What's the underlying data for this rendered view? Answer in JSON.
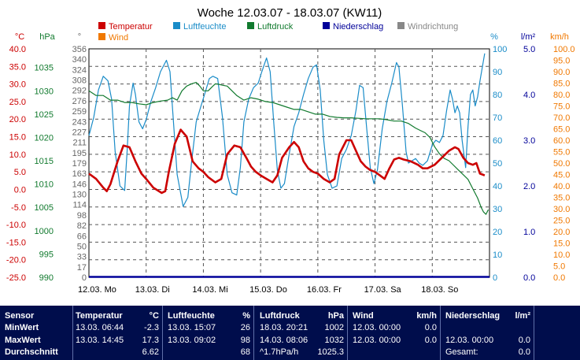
{
  "chart_data": {
    "type": "line",
    "title": "Woche 12.03.07 - 18.03.07 (KW11)",
    "legend": [
      {
        "name": "Temperatur",
        "color": "#cc0000"
      },
      {
        "name": "Luftfeuchte",
        "color": "#1a8cc8"
      },
      {
        "name": "Luftdruck",
        "color": "#117a2e"
      },
      {
        "name": "Niederschlag",
        "color": "#000099"
      },
      {
        "name": "Windrichtung",
        "color": "#888888"
      },
      {
        "name": "Wind",
        "color": "#f07800"
      }
    ],
    "axes": {
      "temp": {
        "unit": "°C",
        "min": -25,
        "max": 40,
        "step": 5,
        "color": "#cc0000",
        "ticks": [
          "40.0",
          "35.0",
          "30.0",
          "25.0",
          "20.0",
          "15.0",
          "10.0",
          "5.0",
          "0.0",
          "-5.0",
          "-10.0",
          "-15.0",
          "-20.0",
          "-25.0"
        ]
      },
      "pressure": {
        "unit": "hPa",
        "min": 990,
        "max": 1039,
        "color": "#117a2e",
        "ticks": [
          "1035",
          "1030",
          "1025",
          "1020",
          "1015",
          "1010",
          "1005",
          "1000",
          "995",
          "990"
        ]
      },
      "direction": {
        "unit": "°",
        "min": 0,
        "max": 356,
        "color": "#666666",
        "ticks": [
          "356",
          "340",
          "324",
          "308",
          "292",
          "276",
          "259",
          "243",
          "227",
          "211",
          "195",
          "179",
          "163",
          "146",
          "130",
          "114",
          "98",
          "82",
          "66",
          "50",
          "33",
          "17",
          "0"
        ]
      },
      "humidity": {
        "unit": "%",
        "min": 0,
        "max": 100,
        "color": "#1a8cc8",
        "ticks": [
          "100",
          "90",
          "80",
          "70",
          "60",
          "50",
          "40",
          "30",
          "20",
          "10",
          "0"
        ]
      },
      "rain": {
        "unit": "l/m²",
        "min": 0,
        "max": 5,
        "color": "#000099",
        "ticks": [
          "5.0",
          "4.0",
          "3.0",
          "2.0",
          "1.0",
          "0.0"
        ]
      },
      "wind": {
        "unit": "km/h",
        "min": 0,
        "max": 100,
        "color": "#f07800",
        "ticks": [
          "100.0",
          "95.0",
          "90.0",
          "85.0",
          "80.0",
          "75.0",
          "70.0",
          "65.0",
          "60.0",
          "55.0",
          "50.0",
          "45.0",
          "40.0",
          "35.0",
          "30.0",
          "25.0",
          "20.0",
          "15.0",
          "10.0",
          "5.0",
          "0.0"
        ]
      }
    },
    "x_labels": [
      "12.03.  Mo",
      "13.03.  Di",
      "14.03.  Mi",
      "15.03.  Do",
      "16.03.  Fr",
      "17.03.  Sa",
      "18.03.  So"
    ],
    "x_range_hours": [
      0,
      168
    ],
    "series": [
      {
        "name": "Temperatur",
        "axis": "temp",
        "color": "#cc0000",
        "points": [
          [
            0,
            4.5
          ],
          [
            3,
            3
          ],
          [
            6,
            0.5
          ],
          [
            7.5,
            -0.5
          ],
          [
            9,
            1.5
          ],
          [
            12,
            8
          ],
          [
            14.5,
            12.5
          ],
          [
            17,
            12
          ],
          [
            19.5,
            8
          ],
          [
            22,
            4.5
          ],
          [
            24,
            3
          ],
          [
            27,
            0.5
          ],
          [
            30.5,
            -1
          ],
          [
            32,
            -0.5
          ],
          [
            33.5,
            5
          ],
          [
            36,
            13
          ],
          [
            38.5,
            17
          ],
          [
            41,
            15
          ],
          [
            43.5,
            8
          ],
          [
            46,
            6
          ],
          [
            48,
            5
          ],
          [
            50,
            3.5
          ],
          [
            53,
            2
          ],
          [
            55.5,
            3
          ],
          [
            58,
            10
          ],
          [
            61,
            12.5
          ],
          [
            63.5,
            12
          ],
          [
            66,
            9
          ],
          [
            68,
            6.5
          ],
          [
            70,
            5
          ],
          [
            72,
            4
          ],
          [
            74.5,
            3
          ],
          [
            77,
            2
          ],
          [
            79,
            4
          ],
          [
            81,
            9
          ],
          [
            84,
            12
          ],
          [
            86,
            13.5
          ],
          [
            88,
            12
          ],
          [
            90,
            8
          ],
          [
            92,
            6
          ],
          [
            94,
            5
          ],
          [
            96,
            4.5
          ],
          [
            98.5,
            3
          ],
          [
            101,
            2
          ],
          [
            103,
            3
          ],
          [
            105,
            10
          ],
          [
            108,
            14
          ],
          [
            110,
            14
          ],
          [
            112,
            11
          ],
          [
            114,
            8
          ],
          [
            116,
            6.5
          ],
          [
            118,
            5.5
          ],
          [
            120,
            5
          ],
          [
            122,
            4
          ],
          [
            124,
            3
          ],
          [
            126,
            6
          ],
          [
            128,
            8.5
          ],
          [
            130,
            9
          ],
          [
            132,
            8.5
          ],
          [
            135,
            8
          ],
          [
            138,
            7
          ],
          [
            140,
            6
          ],
          [
            142,
            6
          ],
          [
            145,
            7
          ],
          [
            148,
            9
          ],
          [
            151,
            11
          ],
          [
            153.5,
            12
          ],
          [
            155,
            11.5
          ],
          [
            157,
            9
          ],
          [
            159,
            7.5
          ],
          [
            161,
            7
          ],
          [
            162.5,
            7.5
          ],
          [
            164,
            4.5
          ],
          [
            166,
            4
          ]
        ]
      },
      {
        "name": "Luftfeuchte",
        "axis": "humidity",
        "color": "#1a8cc8",
        "points": [
          [
            0,
            62
          ],
          [
            2,
            70
          ],
          [
            4,
            82
          ],
          [
            6,
            88
          ],
          [
            8,
            86
          ],
          [
            9.5,
            78
          ],
          [
            11,
            55
          ],
          [
            13,
            40
          ],
          [
            15,
            38
          ],
          [
            16,
            55
          ],
          [
            17,
            75
          ],
          [
            18.5,
            85
          ],
          [
            19.5,
            80
          ],
          [
            21,
            68
          ],
          [
            22.5,
            65
          ],
          [
            24,
            69
          ],
          [
            26,
            77
          ],
          [
            28,
            83
          ],
          [
            30,
            90
          ],
          [
            32.5,
            95
          ],
          [
            34,
            90
          ],
          [
            35,
            75
          ],
          [
            37,
            45
          ],
          [
            39.5,
            31
          ],
          [
            41.5,
            35
          ],
          [
            43,
            50
          ],
          [
            45,
            68
          ],
          [
            47,
            75
          ],
          [
            48.5,
            80
          ],
          [
            50.5,
            87
          ],
          [
            52,
            88
          ],
          [
            54,
            87
          ],
          [
            56,
            70
          ],
          [
            58,
            45
          ],
          [
            60,
            37
          ],
          [
            62,
            36
          ],
          [
            63.5,
            48
          ],
          [
            65,
            68
          ],
          [
            67,
            78
          ],
          [
            69,
            83
          ],
          [
            71,
            85
          ],
          [
            72.5,
            90
          ],
          [
            74.5,
            96
          ],
          [
            76,
            90
          ],
          [
            77.5,
            68
          ],
          [
            79,
            47
          ],
          [
            80.5,
            39
          ],
          [
            82,
            41
          ],
          [
            84,
            54
          ],
          [
            86,
            66
          ],
          [
            88,
            72
          ],
          [
            90,
            80
          ],
          [
            92,
            87
          ],
          [
            94,
            92
          ],
          [
            95.5,
            93
          ],
          [
            97,
            82
          ],
          [
            98.5,
            60
          ],
          [
            100,
            45
          ],
          [
            102,
            39
          ],
          [
            104,
            40
          ],
          [
            106,
            52
          ],
          [
            108,
            56
          ],
          [
            110,
            62
          ],
          [
            112,
            73
          ],
          [
            113.5,
            84
          ],
          [
            115,
            83
          ],
          [
            116.5,
            65
          ],
          [
            118,
            48
          ],
          [
            119.5,
            41
          ],
          [
            121,
            47
          ],
          [
            123,
            65
          ],
          [
            125,
            77
          ],
          [
            127,
            85
          ],
          [
            129,
            94
          ],
          [
            130,
            92
          ],
          [
            131.5,
            75
          ],
          [
            133,
            55
          ],
          [
            134,
            50
          ],
          [
            135.5,
            51
          ],
          [
            137,
            52
          ],
          [
            138.5,
            50
          ],
          [
            140,
            49
          ],
          [
            142,
            51
          ],
          [
            144,
            58
          ],
          [
            145.5,
            60
          ],
          [
            147,
            59
          ],
          [
            148.5,
            62
          ],
          [
            150,
            73
          ],
          [
            151.5,
            82
          ],
          [
            152.5,
            78
          ],
          [
            153.5,
            72
          ],
          [
            154.5,
            75
          ],
          [
            155.5,
            72
          ],
          [
            156.5,
            60
          ],
          [
            157.5,
            52
          ],
          [
            158,
            48
          ],
          [
            159,
            66
          ],
          [
            160,
            80
          ],
          [
            161,
            82
          ],
          [
            162,
            75
          ],
          [
            163,
            79
          ],
          [
            164,
            86
          ],
          [
            165,
            92
          ],
          [
            166,
            98
          ]
        ]
      },
      {
        "name": "Luftdruck",
        "axis": "pressure",
        "color": "#117a2e",
        "points": [
          [
            0,
            1030
          ],
          [
            3,
            1029
          ],
          [
            6,
            1029
          ],
          [
            9,
            1028
          ],
          [
            12,
            1028
          ],
          [
            15,
            1027.5
          ],
          [
            18,
            1027.5
          ],
          [
            21,
            1027.2
          ],
          [
            24,
            1027
          ],
          [
            27,
            1027.5
          ],
          [
            30,
            1027.8
          ],
          [
            33,
            1028
          ],
          [
            35,
            1028.5
          ],
          [
            37,
            1028
          ],
          [
            39,
            1030
          ],
          [
            41,
            1031
          ],
          [
            43,
            1031.5
          ],
          [
            45,
            1031.8
          ],
          [
            46.5,
            1031
          ],
          [
            48,
            1030
          ],
          [
            50,
            1030
          ],
          [
            52,
            1031
          ],
          [
            53,
            1031.5
          ],
          [
            54.5,
            1031.4
          ],
          [
            56,
            1031.2
          ],
          [
            58,
            1031
          ],
          [
            60,
            1030
          ],
          [
            62,
            1029
          ],
          [
            65,
            1028
          ],
          [
            68,
            1028.5
          ],
          [
            71,
            1028.2
          ],
          [
            74,
            1027.7
          ],
          [
            77,
            1027.5
          ],
          [
            80,
            1027
          ],
          [
            83,
            1026.5
          ],
          [
            86,
            1026
          ],
          [
            89,
            1026
          ],
          [
            92,
            1025.5
          ],
          [
            95,
            1025
          ],
          [
            98,
            1025
          ],
          [
            101,
            1024.5
          ],
          [
            104,
            1024.3
          ],
          [
            107,
            1024.2
          ],
          [
            110,
            1024.2
          ],
          [
            113,
            1024.1
          ],
          [
            116,
            1024
          ],
          [
            119,
            1024
          ],
          [
            122,
            1024
          ],
          [
            125,
            1023.8
          ],
          [
            128,
            1023.5
          ],
          [
            131,
            1023.5
          ],
          [
            134,
            1023
          ],
          [
            137,
            1022
          ],
          [
            139,
            1021.5
          ],
          [
            141,
            1021
          ],
          [
            143,
            1020
          ],
          [
            145,
            1018
          ],
          [
            147,
            1016.5
          ],
          [
            149,
            1015.5
          ],
          [
            151,
            1015
          ],
          [
            153,
            1014
          ],
          [
            155,
            1013
          ],
          [
            157,
            1012
          ],
          [
            159,
            1011
          ],
          [
            161,
            1009
          ],
          [
            163,
            1007
          ],
          [
            164.5,
            1005
          ],
          [
            165.5,
            1004
          ],
          [
            166.5,
            1003.5
          ],
          [
            167.5,
            1004.5
          ]
        ]
      },
      {
        "name": "Niederschlag",
        "axis": "rain",
        "color": "#000099",
        "points": [
          [
            0,
            0
          ],
          [
            168,
            0
          ]
        ]
      }
    ]
  },
  "stats": {
    "sensor": {
      "header": "Sensor",
      "rows": [
        "MinWert",
        "MaxWert",
        "Durchschnitt"
      ]
    },
    "temperatur": {
      "header": "Temperatur",
      "unit": "°C",
      "min": {
        "time": "13.03.  06:44",
        "value": "-2.3"
      },
      "max": {
        "time": "13.03.  14:45",
        "value": "17.3"
      },
      "avg": {
        "time": "",
        "value": "6.62"
      }
    },
    "luftfeuchte": {
      "header": "Luftfeuchte",
      "unit": "%",
      "min": {
        "time": "13.03.  15:07",
        "value": "26"
      },
      "max": {
        "time": "13.03.  09:02",
        "value": "98"
      },
      "avg": {
        "time": "",
        "value": "68"
      }
    },
    "luftdruck": {
      "header": "Luftdruck",
      "unit": "hPa",
      "min": {
        "time": "18.03.  20:21",
        "value": "1002"
      },
      "max": {
        "time": "14.03.  08:06",
        "value": "1032"
      },
      "avg": {
        "time": "^1.7hPa/h",
        "value": "1025.3"
      }
    },
    "wind": {
      "header": "Wind",
      "unit": "km/h",
      "min": {
        "time": "12.03.  00:00",
        "value": "0.0"
      },
      "max": {
        "time": "12.03.  00:00",
        "value": "0.0"
      },
      "avg": {
        "time": "",
        "value": ""
      }
    },
    "niederschlag": {
      "header": "Niederschlag",
      "unit": "l/m²",
      "min": {
        "time": "",
        "value": ""
      },
      "max": {
        "time": "12.03.  00:00",
        "value": "0.0"
      },
      "avg": {
        "time": "Gesamt:",
        "value": "0.0"
      }
    }
  }
}
